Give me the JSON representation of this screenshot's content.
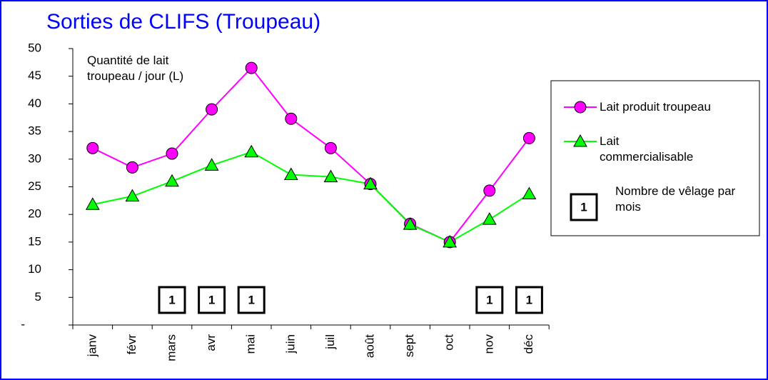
{
  "chart_data": {
    "type": "line",
    "title": "Sorties de CLIFS (Troupeau)",
    "y_label": "Quantité de lait troupeau / jour (L)",
    "categories": [
      "janv",
      "févr",
      "mars",
      "avr",
      "mai",
      "juin",
      "juil",
      "août",
      "sept",
      "oct",
      "nov",
      "déc"
    ],
    "series": [
      {
        "name": "Lait produit troupeau",
        "color": "#ff00ff",
        "marker": "circle",
        "values": [
          32,
          28.5,
          31,
          39,
          46.5,
          37.3,
          32,
          25.5,
          18.3,
          15,
          24.3,
          33.8
        ]
      },
      {
        "name": "Lait commercialisable",
        "color": "#00ff00",
        "marker": "triangle",
        "values": [
          21.8,
          23.3,
          26,
          28.9,
          31.3,
          27.2,
          26.8,
          25.5,
          18.2,
          15,
          19.1,
          23.7
        ]
      }
    ],
    "calvings": {
      "name": "Nombre de vêlage par mois",
      "sample": 1,
      "values": [
        null,
        null,
        1,
        1,
        1,
        null,
        null,
        null,
        null,
        null,
        1,
        1
      ]
    },
    "ylim": [
      0,
      50
    ],
    "yticks": [
      {
        "value": 0,
        "label": "-"
      },
      5,
      10,
      15,
      20,
      25,
      30,
      35,
      40,
      45,
      50
    ],
    "grid": false
  }
}
